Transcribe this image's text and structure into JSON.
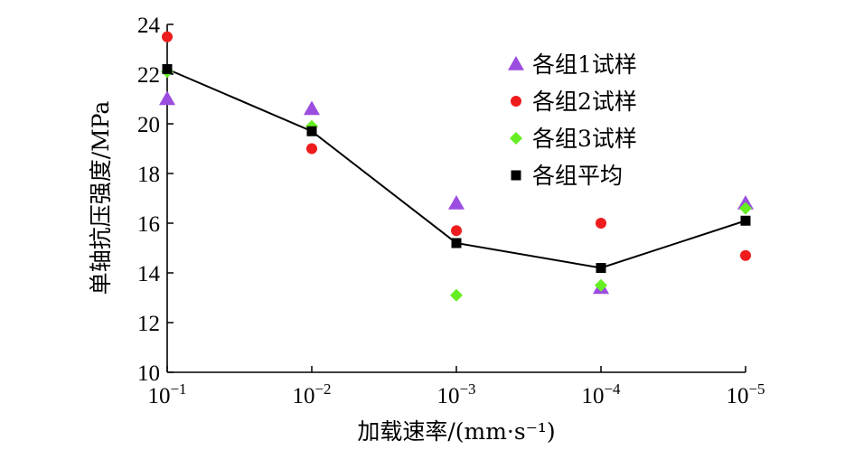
{
  "chart_data": {
    "type": "scatter",
    "title": "",
    "xlabel": "加载速率/(mm·s⁻¹)",
    "ylabel": "单轴抗压强度/MPa",
    "categories": [
      "10⁻¹",
      "10⁻²",
      "10⁻³",
      "10⁻⁴",
      "10⁻⁵"
    ],
    "x_tick_base": "10",
    "x_tick_exponents": [
      "−1",
      "−2",
      "−3",
      "−4",
      "−5"
    ],
    "ylim": [
      10,
      24
    ],
    "yticks": [
      10,
      12,
      14,
      16,
      18,
      20,
      22,
      24
    ],
    "yticks_labels": [
      "10",
      "12",
      "14",
      "16",
      "18",
      "20",
      "22",
      "24"
    ],
    "grid": false,
    "legend_position": "top-right",
    "series": [
      {
        "name": "各组1试样",
        "marker": "triangle",
        "color": "#9b4de0",
        "values": [
          21.0,
          20.6,
          16.8,
          13.4,
          16.8
        ]
      },
      {
        "name": "各组2试样",
        "marker": "circle",
        "color": "#ee1c1c",
        "values": [
          23.5,
          19.0,
          15.7,
          16.0,
          14.7
        ]
      },
      {
        "name": "各组3试样",
        "marker": "diamond",
        "color": "#66ee22",
        "values": [
          22.1,
          19.9,
          13.1,
          13.5,
          16.6
        ]
      },
      {
        "name": "各组平均",
        "marker": "square",
        "color": "#000000",
        "values": [
          22.2,
          19.7,
          15.2,
          14.2,
          16.1
        ],
        "line": true
      }
    ]
  }
}
